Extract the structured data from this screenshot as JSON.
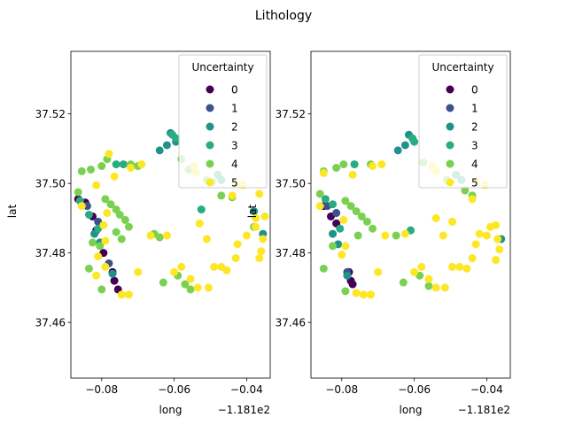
{
  "suptitle": "Lithology",
  "chart_data": [
    {
      "type": "scatter",
      "xlabel": "long",
      "ylabel": "lat",
      "x_offset_label": "−1.181e2",
      "xlim": [
        -0.0885,
        -0.0335
      ],
      "ylim": [
        37.444,
        37.538
      ],
      "xticks": [
        -0.08,
        -0.06,
        -0.04
      ],
      "xtick_labels": [
        "−0.08",
        "−0.06",
        "−0.04"
      ],
      "yticks": [
        37.46,
        37.48,
        37.5,
        37.52
      ],
      "ytick_labels": [
        "37.46",
        "37.48",
        "37.50",
        "37.52"
      ],
      "legend": {
        "title": "Uncertainty",
        "placement": "upper right",
        "entries": [
          "0",
          "1",
          "2",
          "3",
          "4",
          "5"
        ]
      },
      "series": [
        {
          "name": "0",
          "color": "#440154",
          "points": [
            [
              -0.0865,
              37.4955
            ],
            [
              -0.0845,
              37.4945
            ],
            [
              -0.0825,
              37.4905
            ],
            [
              -0.0815,
              37.4865
            ],
            [
              -0.0795,
              37.48
            ],
            [
              -0.077,
              37.4745
            ],
            [
              -0.0765,
              37.472
            ],
            [
              -0.0755,
              37.4695
            ]
          ]
        },
        {
          "name": "1",
          "color": "#3b528b",
          "points": [
            [
              -0.084,
              37.4935
            ],
            [
              -0.081,
              37.489
            ],
            [
              -0.078,
              37.477
            ]
          ]
        },
        {
          "name": "2",
          "color": "#21918c",
          "points": [
            [
              -0.064,
              37.5095
            ],
            [
              -0.062,
              37.511
            ],
            [
              -0.061,
              37.5145
            ],
            [
              -0.0595,
              37.512
            ],
            [
              -0.082,
              37.4855
            ],
            [
              -0.0805,
              37.483
            ],
            [
              -0.077,
              37.474
            ],
            [
              -0.0355,
              37.4855
            ],
            [
              -0.038,
              37.492
            ]
          ]
        },
        {
          "name": "3",
          "color": "#27ad81",
          "points": [
            [
              -0.0605,
              37.514
            ],
            [
              -0.0595,
              37.513
            ],
            [
              -0.076,
              37.5055
            ],
            [
              -0.074,
              37.5055
            ],
            [
              -0.086,
              37.495
            ],
            [
              -0.0835,
              37.491
            ],
            [
              -0.048,
              37.5025
            ],
            [
              -0.047,
              37.501
            ],
            [
              -0.081,
              37.487
            ],
            [
              -0.0525,
              37.4925
            ]
          ]
        },
        {
          "name": "4",
          "color": "#7ad151",
          "points": [
            [
              -0.0855,
              37.5035
            ],
            [
              -0.083,
              37.504
            ],
            [
              -0.08,
              37.505
            ],
            [
              -0.0785,
              37.507
            ],
            [
              -0.072,
              37.5055
            ],
            [
              -0.07,
              37.505
            ],
            [
              -0.058,
              37.507
            ],
            [
              -0.056,
              37.504
            ],
            [
              -0.051,
              37.501
            ],
            [
              -0.0495,
              37.5005
            ],
            [
              -0.0865,
              37.4975
            ],
            [
              -0.079,
              37.4955
            ],
            [
              -0.0775,
              37.494
            ],
            [
              -0.076,
              37.4925
            ],
            [
              -0.075,
              37.491
            ],
            [
              -0.0735,
              37.4895
            ],
            [
              -0.0725,
              37.4875
            ],
            [
              -0.076,
              37.486
            ],
            [
              -0.0745,
              37.484
            ],
            [
              -0.0825,
              37.483
            ],
            [
              -0.0805,
              37.482
            ],
            [
              -0.0835,
              37.4755
            ],
            [
              -0.08,
              37.4695
            ],
            [
              -0.0655,
              37.4855
            ],
            [
              -0.064,
              37.4845
            ],
            [
              -0.063,
              37.4715
            ],
            [
              -0.059,
              37.4735
            ],
            [
              -0.057,
              37.471
            ],
            [
              -0.0555,
              37.4695
            ],
            [
              -0.047,
              37.4965
            ],
            [
              -0.044,
              37.496
            ],
            [
              -0.038,
              37.4875
            ]
          ]
        },
        {
          "name": "5",
          "color": "#fde725",
          "points": [
            [
              -0.078,
              37.5085
            ],
            [
              -0.0765,
              37.502
            ],
            [
              -0.0815,
              37.4995
            ],
            [
              -0.072,
              37.5045
            ],
            [
              -0.069,
              37.5055
            ],
            [
              -0.0545,
              37.505
            ],
            [
              -0.054,
              37.503
            ],
            [
              -0.043,
              37.5
            ],
            [
              -0.041,
              37.4995
            ],
            [
              -0.0365,
              37.497
            ],
            [
              -0.044,
              37.4965
            ],
            [
              -0.035,
              37.4905
            ],
            [
              -0.0855,
              37.4935
            ],
            [
              -0.0785,
              37.4915
            ],
            [
              -0.0795,
              37.488
            ],
            [
              -0.079,
              37.4835
            ],
            [
              -0.081,
              37.479
            ],
            [
              -0.079,
              37.476
            ],
            [
              -0.0815,
              37.4735
            ],
            [
              -0.0745,
              37.468
            ],
            [
              -0.0725,
              37.468
            ],
            [
              -0.07,
              37.4745
            ],
            [
              -0.0665,
              37.485
            ],
            [
              -0.062,
              37.485
            ],
            [
              -0.06,
              37.4745
            ],
            [
              -0.053,
              37.4885
            ],
            [
              -0.051,
              37.484
            ],
            [
              -0.058,
              37.476
            ],
            [
              -0.0555,
              37.4725
            ],
            [
              -0.0535,
              37.47
            ],
            [
              -0.0505,
              37.47
            ],
            [
              -0.049,
              37.476
            ],
            [
              -0.047,
              37.476
            ],
            [
              -0.0455,
              37.475
            ],
            [
              -0.043,
              37.4785
            ],
            [
              -0.0425,
              37.4825
            ],
            [
              -0.04,
              37.485
            ],
            [
              -0.0375,
              37.4875
            ],
            [
              -0.0375,
              37.49
            ],
            [
              -0.0355,
              37.484
            ],
            [
              -0.036,
              37.4805
            ],
            [
              -0.0365,
              37.4785
            ]
          ]
        }
      ]
    },
    {
      "type": "scatter",
      "xlabel": "long",
      "ylabel": "lat",
      "x_offset_label": "−1.181e2",
      "xlim": [
        -0.0885,
        -0.0335
      ],
      "ylim": [
        37.444,
        37.538
      ],
      "xticks": [
        -0.08,
        -0.06,
        -0.04
      ],
      "xtick_labels": [
        "−0.08",
        "−0.06",
        "−0.04"
      ],
      "yticks": [
        37.46,
        37.48,
        37.5,
        37.52
      ],
      "ytick_labels": [
        "37.46",
        "37.48",
        "37.50",
        "37.52"
      ],
      "legend": {
        "title": "Uncertainty",
        "placement": "upper right",
        "entries": [
          "0",
          "1",
          "2",
          "3",
          "4",
          "5"
        ]
      },
      "series": [
        {
          "name": "0",
          "color": "#440154",
          "points": [
            [
              -0.085,
              37.4935
            ],
            [
              -0.083,
              37.4905
            ],
            [
              -0.0815,
              37.4885
            ],
            [
              -0.0775,
              37.472
            ],
            [
              -0.077,
              37.471
            ],
            [
              -0.078,
              37.4745
            ]
          ]
        },
        {
          "name": "1",
          "color": "#3b528b",
          "points": [
            [
              -0.084,
              37.4935
            ],
            [
              -0.0815,
              37.4915
            ],
            [
              -0.0785,
              37.4745
            ]
          ]
        },
        {
          "name": "2",
          "color": "#21918c",
          "points": [
            [
              -0.0645,
              37.5095
            ],
            [
              -0.0625,
              37.511
            ],
            [
              -0.0615,
              37.514
            ],
            [
              -0.0825,
              37.4855
            ],
            [
              -0.081,
              37.4825
            ],
            [
              -0.0785,
              37.4735
            ],
            [
              -0.036,
              37.484
            ]
          ]
        },
        {
          "name": "3",
          "color": "#27ad81",
          "points": [
            [
              -0.0605,
              37.513
            ],
            [
              -0.06,
              37.512
            ],
            [
              -0.0765,
              37.5055
            ],
            [
              -0.0845,
              37.4955
            ],
            [
              -0.0825,
              37.494
            ],
            [
              -0.0485,
              37.5025
            ],
            [
              -0.047,
              37.501
            ],
            [
              -0.0805,
              37.487
            ],
            [
              -0.061,
              37.4865
            ]
          ]
        },
        {
          "name": "4",
          "color": "#7ad151",
          "points": [
            [
              -0.085,
              37.5035
            ],
            [
              -0.0815,
              37.5045
            ],
            [
              -0.0795,
              37.5055
            ],
            [
              -0.072,
              37.5055
            ],
            [
              -0.0575,
              37.506
            ],
            [
              -0.051,
              37.501
            ],
            [
              -0.086,
              37.497
            ],
            [
              -0.079,
              37.495
            ],
            [
              -0.0775,
              37.4935
            ],
            [
              -0.076,
              37.492
            ],
            [
              -0.0745,
              37.4905
            ],
            [
              -0.073,
              37.489
            ],
            [
              -0.0715,
              37.487
            ],
            [
              -0.0755,
              37.485
            ],
            [
              -0.0825,
              37.482
            ],
            [
              -0.085,
              37.4755
            ],
            [
              -0.079,
              37.469
            ],
            [
              -0.065,
              37.485
            ],
            [
              -0.063,
              37.4715
            ],
            [
              -0.0585,
              37.4735
            ],
            [
              -0.056,
              37.4705
            ],
            [
              -0.046,
              37.498
            ],
            [
              -0.044,
              37.4965
            ]
          ]
        },
        {
          "name": "5",
          "color": "#fde725",
          "points": [
            [
              -0.085,
              37.503
            ],
            [
              -0.077,
              37.5025
            ],
            [
              -0.0715,
              37.505
            ],
            [
              -0.069,
              37.5055
            ],
            [
              -0.055,
              37.505
            ],
            [
              -0.054,
              37.5035
            ],
            [
              -0.043,
              37.5005
            ],
            [
              -0.0405,
              37.4995
            ],
            [
              -0.044,
              37.4955
            ],
            [
              -0.054,
              37.49
            ],
            [
              -0.0495,
              37.489
            ],
            [
              -0.042,
              37.4855
            ],
            [
              -0.086,
              37.4935
            ],
            [
              -0.0795,
              37.4895
            ],
            [
              -0.079,
              37.482
            ],
            [
              -0.08,
              37.4795
            ],
            [
              -0.076,
              37.4685
            ],
            [
              -0.074,
              37.468
            ],
            [
              -0.072,
              37.468
            ],
            [
              -0.07,
              37.4745
            ],
            [
              -0.068,
              37.485
            ],
            [
              -0.0625,
              37.4855
            ],
            [
              -0.06,
              37.4745
            ],
            [
              -0.052,
              37.485
            ],
            [
              -0.058,
              37.476
            ],
            [
              -0.056,
              37.4725
            ],
            [
              -0.054,
              37.47
            ],
            [
              -0.0515,
              37.47
            ],
            [
              -0.0495,
              37.476
            ],
            [
              -0.0475,
              37.476
            ],
            [
              -0.0455,
              37.4755
            ],
            [
              -0.044,
              37.4785
            ],
            [
              -0.043,
              37.4825
            ],
            [
              -0.04,
              37.485
            ],
            [
              -0.039,
              37.4875
            ],
            [
              -0.0375,
              37.488
            ],
            [
              -0.037,
              37.484
            ],
            [
              -0.0365,
              37.481
            ],
            [
              -0.0375,
              37.478
            ]
          ]
        }
      ]
    }
  ]
}
